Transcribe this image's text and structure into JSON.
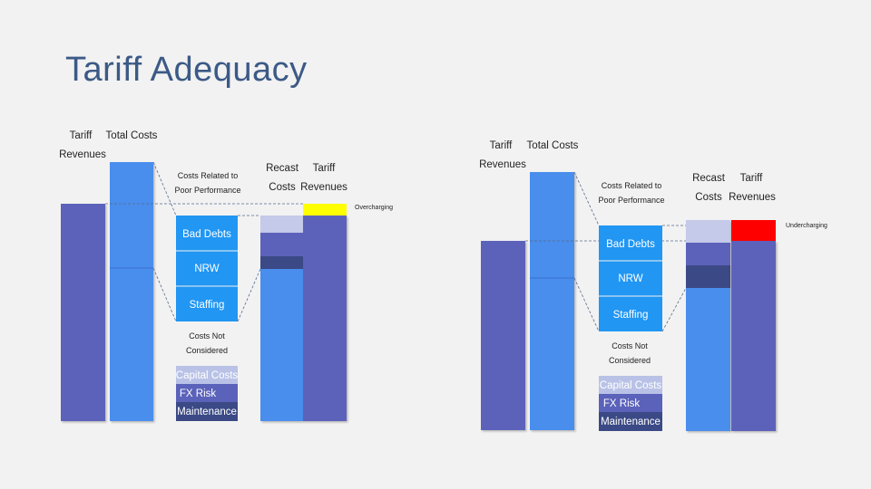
{
  "slide": {
    "title": "Tariff Adequacy"
  },
  "colors": {
    "background": "#f2f2f2",
    "tariff_bar": "#5b62ba",
    "cost_bar": "#4a8ded",
    "perf_box": "#2196f3",
    "capital": "#b9c2e6",
    "fx": "#5b62ba",
    "maintenance": "#3b4a86",
    "overcharging": "#ffff00",
    "undercharging": "#ff0000"
  },
  "diagrams": [
    {
      "id": "left",
      "labels": {
        "tariff_revenues": "Tariff Revenues",
        "total_costs": "Total Costs",
        "costs_related": "Costs Related to Poor Performance",
        "recast_costs": "Recast Costs",
        "tariff_revenues_2": "Tariff Revenues",
        "charging": "Overcharging",
        "bad_debts": "Bad Debts",
        "nrw": "NRW",
        "staffing": "Staffing",
        "costs_not_considered": "Costs Not Considered",
        "capital_costs": "Capital Costs",
        "fx_risk": "FX Risk",
        "maintenance": "Maintenance"
      }
    },
    {
      "id": "right",
      "labels": {
        "tariff_revenues": "Tariff Revenues",
        "total_costs": "Total Costs",
        "costs_related": "Costs Related to Poor Performance",
        "recast_costs": "Recast Costs",
        "tariff_revenues_2": "Tariff Revenues",
        "charging": "Undercharging",
        "bad_debts": "Bad Debts",
        "nrw": "NRW",
        "staffing": "Staffing",
        "costs_not_considered": "Costs Not Considered",
        "capital_costs": "Capital Costs",
        "fx_risk": "FX Risk",
        "maintenance": "Maintenance"
      }
    }
  ]
}
